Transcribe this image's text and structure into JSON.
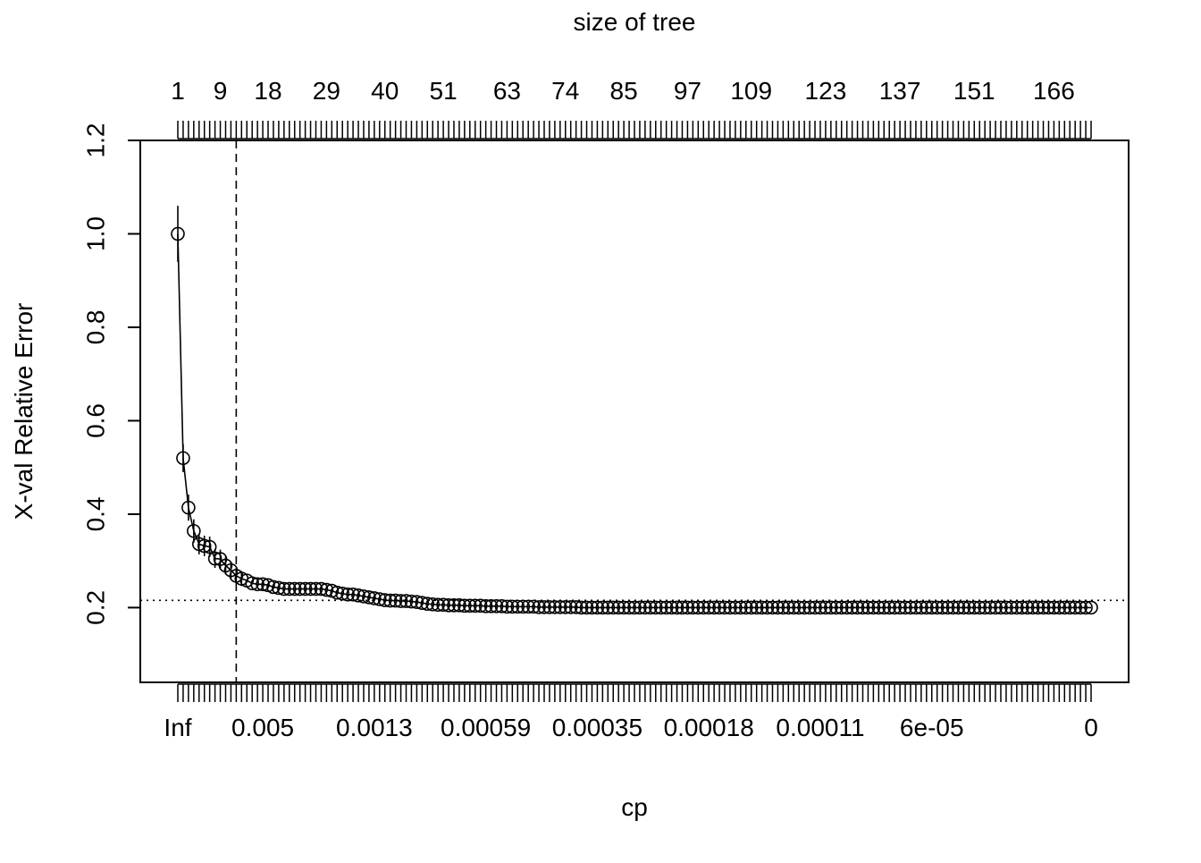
{
  "chart_data": {
    "type": "line",
    "title": "",
    "top_axis_label": "size of tree",
    "xlabel": "cp",
    "ylabel": "X-val Relative Error",
    "ylim": [
      0.04,
      1.2
    ],
    "y_ticks": [
      0.2,
      0.4,
      0.6,
      0.8,
      1.0,
      1.2
    ],
    "y_tick_labels": [
      "0.2",
      "0.4",
      "0.6",
      "0.8",
      "1.0",
      "1.2"
    ],
    "n_points": 173,
    "bottom_tick_labels": [
      {
        "index": 1,
        "label": "Inf"
      },
      {
        "index": 17,
        "label": "0.005"
      },
      {
        "index": 38,
        "label": "0.0013"
      },
      {
        "index": 59,
        "label": "0.00059"
      },
      {
        "index": 80,
        "label": "0.00035"
      },
      {
        "index": 101,
        "label": "0.00018"
      },
      {
        "index": 122,
        "label": "0.00011"
      },
      {
        "index": 143,
        "label": "6e-05"
      },
      {
        "index": 173,
        "label": "0"
      }
    ],
    "top_tick_labels": [
      {
        "index": 1,
        "label": "1"
      },
      {
        "index": 9,
        "label": "9"
      },
      {
        "index": 18,
        "label": "18"
      },
      {
        "index": 29,
        "label": "29"
      },
      {
        "index": 40,
        "label": "40"
      },
      {
        "index": 51,
        "label": "51"
      },
      {
        "index": 63,
        "label": "63"
      },
      {
        "index": 74,
        "label": "74"
      },
      {
        "index": 85,
        "label": "85"
      },
      {
        "index": 97,
        "label": "97"
      },
      {
        "index": 109,
        "label": "109"
      },
      {
        "index": 123,
        "label": "123"
      },
      {
        "index": 137,
        "label": "137"
      },
      {
        "index": 151,
        "label": "151"
      },
      {
        "index": 166,
        "label": "166"
      }
    ],
    "series": [
      {
        "values": [
          1.0,
          0.52,
          0.414,
          0.364,
          0.336,
          0.332,
          0.33,
          0.305,
          0.304,
          0.29,
          0.28,
          0.268,
          0.262,
          0.258,
          0.252,
          0.25,
          0.25,
          0.248,
          0.244,
          0.242,
          0.24,
          0.24,
          0.24,
          0.24,
          0.24,
          0.24,
          0.24,
          0.24,
          0.238,
          0.236,
          0.232,
          0.23,
          0.228,
          0.228,
          0.226,
          0.224,
          0.222,
          0.22,
          0.218,
          0.216,
          0.215,
          0.215,
          0.214,
          0.214,
          0.213,
          0.212,
          0.21,
          0.208,
          0.207,
          0.206,
          0.206,
          0.205,
          0.205,
          0.205,
          0.204,
          0.204,
          0.204,
          0.204,
          0.203,
          0.203,
          0.203,
          0.203,
          0.202,
          0.202,
          0.202,
          0.202,
          0.202,
          0.202,
          0.201,
          0.201,
          0.201,
          0.201,
          0.201,
          0.201,
          0.201,
          0.201,
          0.2,
          0.2,
          0.2,
          0.2,
          0.2,
          0.2,
          0.2,
          0.2,
          0.2,
          0.2,
          0.2,
          0.2,
          0.2,
          0.2,
          0.2,
          0.2,
          0.2,
          0.2,
          0.2,
          0.2,
          0.2,
          0.2,
          0.2,
          0.2,
          0.2,
          0.2,
          0.2,
          0.2,
          0.2,
          0.2,
          0.2,
          0.2,
          0.2,
          0.2,
          0.2,
          0.2,
          0.2,
          0.2,
          0.2,
          0.2,
          0.2,
          0.2,
          0.2,
          0.2,
          0.2,
          0.2,
          0.2,
          0.2,
          0.2,
          0.2,
          0.2,
          0.2,
          0.2,
          0.2,
          0.2,
          0.2,
          0.2,
          0.2,
          0.2,
          0.2,
          0.2,
          0.2,
          0.2,
          0.2,
          0.2,
          0.2,
          0.2,
          0.2,
          0.2,
          0.2,
          0.2,
          0.2,
          0.2,
          0.2,
          0.2,
          0.2,
          0.2,
          0.2,
          0.2,
          0.2,
          0.2,
          0.2,
          0.2,
          0.2,
          0.2,
          0.2,
          0.2,
          0.2,
          0.2,
          0.2,
          0.2,
          0.2,
          0.2,
          0.2,
          0.2,
          0.2,
          0.2
        ],
        "error_bar_halfwidth": [
          0.06,
          0.03,
          0.028,
          0.025,
          0.022,
          0.022,
          0.022,
          0.02,
          0.02,
          0.019,
          0.018,
          0.017,
          0.016
        ]
      }
    ],
    "reference_lines": {
      "horizontal_dotted_y": 0.2156,
      "vertical_dashed_at_index": 12
    },
    "grid": false,
    "legend": "none"
  }
}
